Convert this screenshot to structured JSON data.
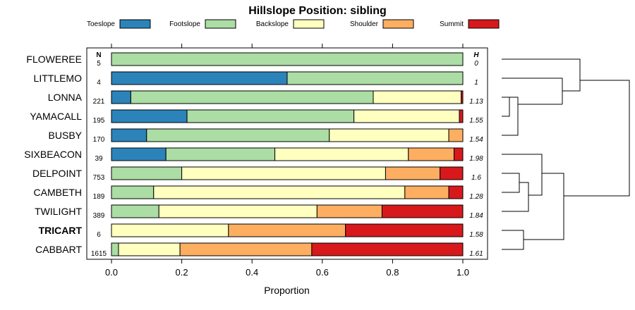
{
  "chart_data": {
    "type": "bar",
    "orientation": "horizontal",
    "stacked": true,
    "title": "Hillslope Position: sibling",
    "xlabel": "Proportion",
    "xlim": [
      0,
      1
    ],
    "xticks": [
      "0.0",
      "0.2",
      "0.4",
      "0.6",
      "0.8",
      "1.0"
    ],
    "n_header": "N",
    "h_header": "H",
    "legend_position": "top",
    "series": [
      {
        "name": "Toeslope",
        "color": "#2B83BA"
      },
      {
        "name": "Footslope",
        "color": "#ABDDA4"
      },
      {
        "name": "Backslope",
        "color": "#FFFFBF"
      },
      {
        "name": "Shoulder",
        "color": "#FDAE61"
      },
      {
        "name": "Summit",
        "color": "#D7191C"
      }
    ],
    "rows": [
      {
        "label": "FLOWEREE",
        "n": "5",
        "h": "0",
        "bold": false,
        "values": [
          0,
          1.0,
          0,
          0,
          0
        ]
      },
      {
        "label": "LITTLEMO",
        "n": "4",
        "h": "1",
        "bold": false,
        "values": [
          0.5,
          0.5,
          0,
          0,
          0
        ]
      },
      {
        "label": "LONNA",
        "n": "221",
        "h": "1.13",
        "bold": false,
        "values": [
          0.055,
          0.69,
          0.25,
          0,
          0.005
        ]
      },
      {
        "label": "YAMACALL",
        "n": "195",
        "h": "1.55",
        "bold": false,
        "values": [
          0.215,
          0.475,
          0.3,
          0,
          0.01
        ]
      },
      {
        "label": "BUSBY",
        "n": "170",
        "h": "1.54",
        "bold": false,
        "values": [
          0.1,
          0.52,
          0.34,
          0.04,
          0
        ]
      },
      {
        "label": "SIXBEACON",
        "n": "39",
        "h": "1.98",
        "bold": false,
        "values": [
          0.155,
          0.31,
          0.38,
          0.13,
          0.025
        ]
      },
      {
        "label": "DELPOINT",
        "n": "753",
        "h": "1.6",
        "bold": false,
        "values": [
          0,
          0.2,
          0.58,
          0.155,
          0.065
        ]
      },
      {
        "label": "CAMBETH",
        "n": "189",
        "h": "1.28",
        "bold": false,
        "values": [
          0,
          0.12,
          0.715,
          0.125,
          0.04
        ]
      },
      {
        "label": "TWILIGHT",
        "n": "389",
        "h": "1.84",
        "bold": false,
        "values": [
          0,
          0.135,
          0.45,
          0.185,
          0.23
        ]
      },
      {
        "label": "TRICART",
        "n": "6",
        "h": "1.58",
        "bold": true,
        "values": [
          0,
          0,
          0.333,
          0.333,
          0.334
        ]
      },
      {
        "label": "CABBART",
        "n": "1615",
        "h": "1.61",
        "bold": false,
        "values": [
          0,
          0.02,
          0.175,
          0.375,
          0.43
        ]
      }
    ]
  }
}
